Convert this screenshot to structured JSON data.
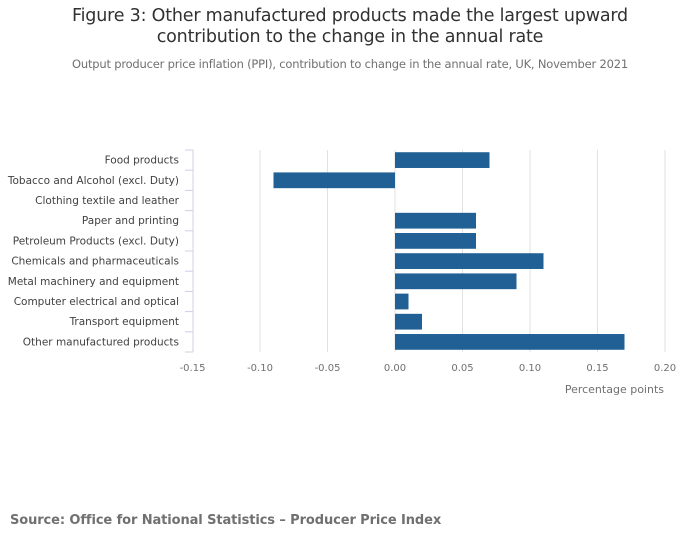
{
  "title_line1": "Figure 3: Other manufactured products made the largest upward",
  "title_line2": "contribution to the change in the annual rate",
  "subtitle": "Output producer price inflation (PPI), contribution to change in the annual rate, UK, November 2021",
  "source": "Source: Office for National Statistics – Producer Price Index",
  "colors": {
    "bar": "#206095",
    "grid": "#e2e2e3",
    "axis": "#ccd0e6"
  },
  "chart_data": {
    "type": "bar",
    "orientation": "horizontal",
    "title": "Figure 3: Other manufactured products made the largest upward contribution to the change in the annual rate",
    "subtitle": "Output producer price inflation (PPI), contribution to change in the annual rate, UK, November 2021",
    "categories": [
      "Food products",
      "Tobacco and Alcohol (excl. Duty)",
      "Clothing textile and leather",
      "Paper and printing",
      "Petroleum Products (excl. Duty)",
      "Chemicals and pharmaceuticals",
      "Metal machinery and equipment",
      "Computer electrical and optical",
      "Transport equipment",
      "Other manufactured products"
    ],
    "values": [
      0.07,
      -0.09,
      0.0,
      0.06,
      0.06,
      0.11,
      0.09,
      0.01,
      0.02,
      0.17
    ],
    "xlabel": "Percentage points",
    "ylabel": "",
    "xlim": [
      -0.15,
      0.2
    ],
    "xticks": [
      -0.15,
      -0.1,
      -0.05,
      0.0,
      0.05,
      0.1,
      0.15,
      0.2
    ],
    "xtick_labels": [
      "-0.15",
      "-0.10",
      "-0.05",
      "0.00",
      "0.05",
      "0.10",
      "0.15",
      "0.20"
    ],
    "grid": true,
    "legend": "none"
  }
}
